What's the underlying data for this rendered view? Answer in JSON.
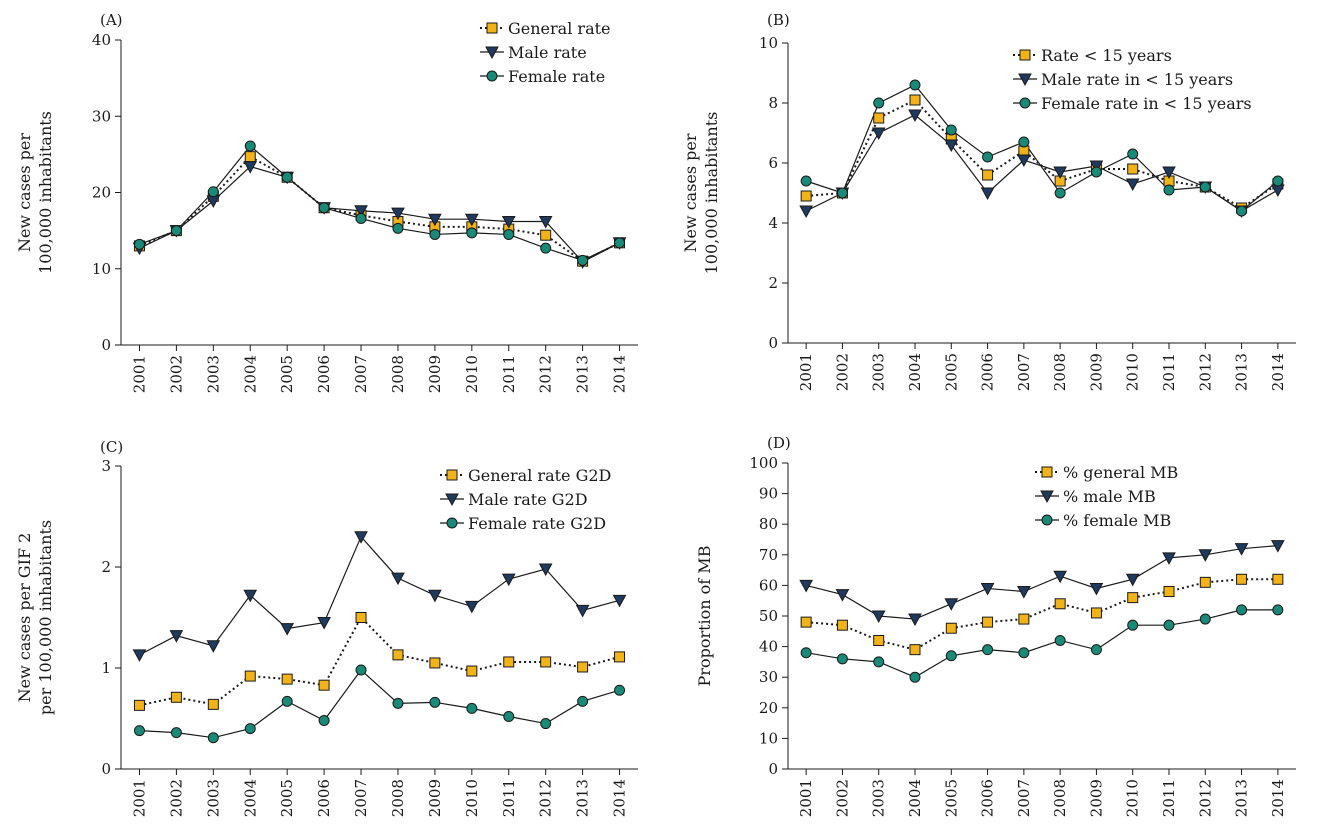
{
  "chart_data": [
    {
      "type": "line",
      "panel_label": "(A)",
      "ylabel_lines": [
        "New cases per",
        "100,000 inhabitants"
      ],
      "categories": [
        "2001",
        "2002",
        "2003",
        "2004",
        "2005",
        "2006",
        "2007",
        "2008",
        "2009",
        "2010",
        "2011",
        "2012",
        "2013",
        "2014"
      ],
      "ylim": [
        0,
        40
      ],
      "yticks": [
        "0",
        "10",
        "20",
        "30",
        "40"
      ],
      "legend_position": "top-right",
      "series": [
        {
          "name": "General rate",
          "marker": "square",
          "line": "dotted",
          "color": "#f2b319",
          "values": [
            13.0,
            15.0,
            19.5,
            24.7,
            22.0,
            18.0,
            17.0,
            16.2,
            15.5,
            15.5,
            15.2,
            14.4,
            11.0,
            13.4
          ]
        },
        {
          "name": "Male rate",
          "marker": "triangle-down",
          "line": "solid",
          "color": "#1f3a5f",
          "values": [
            12.7,
            15.0,
            18.9,
            23.4,
            22.0,
            18.0,
            17.6,
            17.3,
            16.5,
            16.5,
            16.2,
            16.2,
            10.9,
            13.4
          ]
        },
        {
          "name": "Female rate",
          "marker": "circle",
          "line": "solid",
          "color": "#1a8a78",
          "values": [
            13.2,
            15.0,
            20.1,
            26.1,
            22.0,
            18.0,
            16.6,
            15.3,
            14.5,
            14.7,
            14.5,
            12.7,
            11.1,
            13.4
          ]
        }
      ]
    },
    {
      "type": "line",
      "panel_label": "(B)",
      "ylabel_lines": [
        "New cases per",
        "100,000 inhabitants"
      ],
      "categories": [
        "2001",
        "2002",
        "2003",
        "2004",
        "2005",
        "2006",
        "2007",
        "2008",
        "2009",
        "2010",
        "2011",
        "2012",
        "2013",
        "2014"
      ],
      "ylim": [
        0,
        10
      ],
      "yticks": [
        "0",
        "2",
        "4",
        "6",
        "8",
        "10"
      ],
      "legend_position": "top-right",
      "series": [
        {
          "name": "Rate < 15 years",
          "marker": "square",
          "line": "dotted",
          "color": "#f2b319",
          "values": [
            4.9,
            5.0,
            7.5,
            8.1,
            6.8,
            5.6,
            6.4,
            5.4,
            5.8,
            5.8,
            5.4,
            5.2,
            4.5,
            5.3
          ]
        },
        {
          "name": "Male rate in < 15 years",
          "marker": "triangle-down",
          "line": "solid",
          "color": "#1f3a5f",
          "values": [
            4.4,
            5.0,
            7.0,
            7.6,
            6.6,
            5.0,
            6.1,
            5.7,
            5.9,
            5.3,
            5.7,
            5.2,
            4.4,
            5.1
          ]
        },
        {
          "name": "Female rate in < 15 years",
          "marker": "circle",
          "line": "solid",
          "color": "#1a8a78",
          "values": [
            5.4,
            5.0,
            8.0,
            8.6,
            7.1,
            6.2,
            6.7,
            5.0,
            5.7,
            6.3,
            5.1,
            5.2,
            4.4,
            5.4
          ]
        }
      ]
    },
    {
      "type": "line",
      "panel_label": "(C)",
      "ylabel_lines": [
        "New cases per GIF 2",
        "per 100,000 inhabitants"
      ],
      "categories": [
        "2001",
        "2002",
        "2003",
        "2004",
        "2005",
        "2006",
        "2007",
        "2008",
        "2009",
        "2010",
        "2011",
        "2012",
        "2013",
        "2014"
      ],
      "ylim": [
        0,
        3
      ],
      "yticks": [
        "0",
        "1",
        "2",
        "3"
      ],
      "legend_position": "top-right",
      "series": [
        {
          "name": "General rate G2D",
          "marker": "square",
          "line": "dotted",
          "color": "#f2b319",
          "values": [
            0.63,
            0.71,
            0.64,
            0.92,
            0.89,
            0.83,
            1.5,
            1.13,
            1.05,
            0.97,
            1.06,
            1.06,
            1.01,
            1.11
          ]
        },
        {
          "name": "Male rate G2D",
          "marker": "triangle-down",
          "line": "solid",
          "color": "#1f3a5f",
          "values": [
            1.13,
            1.32,
            1.22,
            1.72,
            1.39,
            1.45,
            2.3,
            1.89,
            1.72,
            1.61,
            1.88,
            1.98,
            1.57,
            1.67
          ]
        },
        {
          "name": "Female rate G2D",
          "marker": "circle",
          "line": "solid",
          "color": "#1a8a78",
          "values": [
            0.38,
            0.36,
            0.31,
            0.4,
            0.67,
            0.48,
            0.98,
            0.65,
            0.66,
            0.6,
            0.52,
            0.45,
            0.67,
            0.78
          ]
        }
      ]
    },
    {
      "type": "line",
      "panel_label": "(D)",
      "ylabel_lines": [
        "Proportion of MB"
      ],
      "categories": [
        "2001",
        "2002",
        "2003",
        "2004",
        "2005",
        "2006",
        "2007",
        "2008",
        "2009",
        "2010",
        "2011",
        "2012",
        "2013",
        "2014"
      ],
      "ylim": [
        0,
        100
      ],
      "yticks": [
        "0",
        "10",
        "20",
        "30",
        "40",
        "50",
        "60",
        "70",
        "80",
        "90",
        "100"
      ],
      "legend_position": "top-center",
      "series": [
        {
          "name": "% general MB",
          "marker": "square",
          "line": "dotted",
          "color": "#f2b319",
          "values": [
            48,
            47,
            42,
            39,
            46,
            48,
            49,
            54,
            51,
            56,
            58,
            61,
            62,
            62
          ]
        },
        {
          "name": "% male MB",
          "marker": "triangle-down",
          "line": "solid",
          "color": "#1f3a5f",
          "values": [
            60,
            57,
            50,
            49,
            54,
            59,
            58,
            63,
            59,
            62,
            69,
            70,
            72,
            73
          ]
        },
        {
          "name": "% female MB",
          "marker": "circle",
          "line": "solid",
          "color": "#1a8a78",
          "values": [
            38,
            36,
            35,
            30,
            37,
            39,
            38,
            42,
            39,
            47,
            47,
            49,
            52,
            52
          ]
        }
      ]
    }
  ]
}
